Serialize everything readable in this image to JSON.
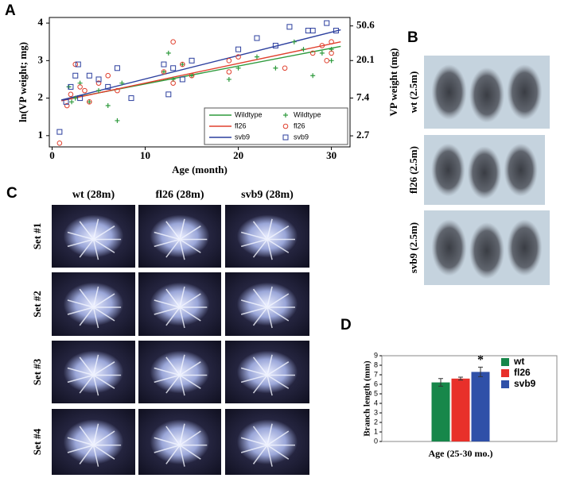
{
  "panels": {
    "letters": [
      "A",
      "B",
      "C",
      "D"
    ],
    "B": {
      "labels": [
        "wt (2.5m)",
        "fl26 (2.5m)",
        "svb9 (2.5m)"
      ]
    },
    "C": {
      "columns": [
        "wt (28m)",
        "fl26 (28m)",
        "svb9 (28m)"
      ],
      "rows": [
        "Set #1",
        "Set #2",
        "Set #3",
        "Set #4"
      ]
    }
  },
  "chart_data": [
    {
      "type": "scatter",
      "xlabel": "Age (month)",
      "ylabel": "ln(VP weight; mg)",
      "y2label": "VP weight (mg)",
      "xlim": [
        -0.3,
        32
      ],
      "xticks": [
        0,
        10,
        20,
        30
      ],
      "ylim": [
        0.7,
        4.15
      ],
      "yticks": [
        1,
        2,
        3,
        4
      ],
      "y2lim": [
        2.01,
        63.4
      ],
      "y2scale": "log",
      "y2ticks": [
        2.7,
        7.4,
        20.1,
        50.6
      ],
      "legend": "lower right",
      "series": [
        {
          "name": "Wildtype",
          "mark": "line",
          "color": "#2e9a3c",
          "x": [
            1,
            31
          ],
          "values": [
            1.95,
            3.38
          ]
        },
        {
          "name": "fl26",
          "mark": "line",
          "color": "#e0402e",
          "x": [
            1,
            31
          ],
          "values": [
            1.93,
            3.5
          ]
        },
        {
          "name": "svb9",
          "mark": "line",
          "color": "#2c3f9e",
          "x": [
            1,
            31
          ],
          "values": [
            1.95,
            3.82
          ]
        },
        {
          "name": "Wildtype",
          "mark": "plus",
          "color": "#2e9a3c",
          "x": [
            1.8,
            2.1,
            2.5,
            3,
            4,
            5,
            6,
            7,
            7.5,
            12,
            12.5,
            13,
            14,
            15,
            19,
            20,
            22,
            24,
            26,
            27,
            28,
            29,
            30,
            30
          ],
          "values": [
            2.3,
            1.9,
            2.0,
            2.4,
            1.9,
            2.2,
            1.8,
            1.4,
            2.4,
            2.7,
            3.2,
            2.5,
            2.9,
            2.6,
            2.5,
            2.8,
            3.1,
            2.8,
            3.5,
            3.3,
            2.6,
            3.2,
            3.0,
            3.3
          ]
        },
        {
          "name": "fl26",
          "mark": "circle",
          "color": "#e0402e",
          "x": [
            0.8,
            1.6,
            2,
            2.5,
            3,
            3.5,
            4,
            5,
            6,
            7,
            12,
            13,
            13,
            14,
            15,
            19,
            19,
            20,
            25,
            28,
            29,
            29.5,
            30,
            30
          ],
          "values": [
            0.8,
            1.8,
            2.1,
            2.9,
            2.3,
            2.2,
            1.9,
            2.4,
            2.6,
            2.2,
            2.7,
            2.4,
            3.5,
            2.9,
            2.6,
            3.0,
            2.7,
            3.1,
            2.8,
            3.2,
            3.4,
            3.0,
            3.5,
            3.2
          ]
        },
        {
          "name": "svb9",
          "mark": "square",
          "color": "#2c3f9e",
          "x": [
            0.8,
            1.5,
            2,
            2.5,
            2.8,
            3,
            4,
            5,
            6,
            7,
            8.5,
            12,
            12.5,
            13,
            14,
            15,
            20,
            22,
            24,
            25.5,
            27.5,
            28,
            29.5,
            30.5
          ],
          "values": [
            1.1,
            1.9,
            2.3,
            2.6,
            2.9,
            2.0,
            2.6,
            2.5,
            2.3,
            2.8,
            2.0,
            2.9,
            2.1,
            2.8,
            2.5,
            3.0,
            3.3,
            3.6,
            3.4,
            3.9,
            3.8,
            3.8,
            4.0,
            3.8
          ]
        }
      ]
    },
    {
      "type": "bar",
      "ylabel": "Branch length (mm)",
      "categories": [
        "Age (25-30 mo.)"
      ],
      "ylim": [
        0,
        9
      ],
      "yticks": [
        0,
        1,
        2,
        3,
        4,
        5,
        6,
        7,
        8,
        9
      ],
      "legend": "upper right",
      "annotation": "*",
      "series": [
        {
          "name": "wt",
          "color": "#17874a",
          "values": [
            6.2
          ],
          "errors": [
            0.4
          ]
        },
        {
          "name": "fl26",
          "color": "#e8302a",
          "values": [
            6.6
          ],
          "errors": [
            0.15
          ]
        },
        {
          "name": "svb9",
          "color": "#2f50a8",
          "values": [
            7.3
          ],
          "errors": [
            0.5
          ]
        }
      ]
    }
  ]
}
